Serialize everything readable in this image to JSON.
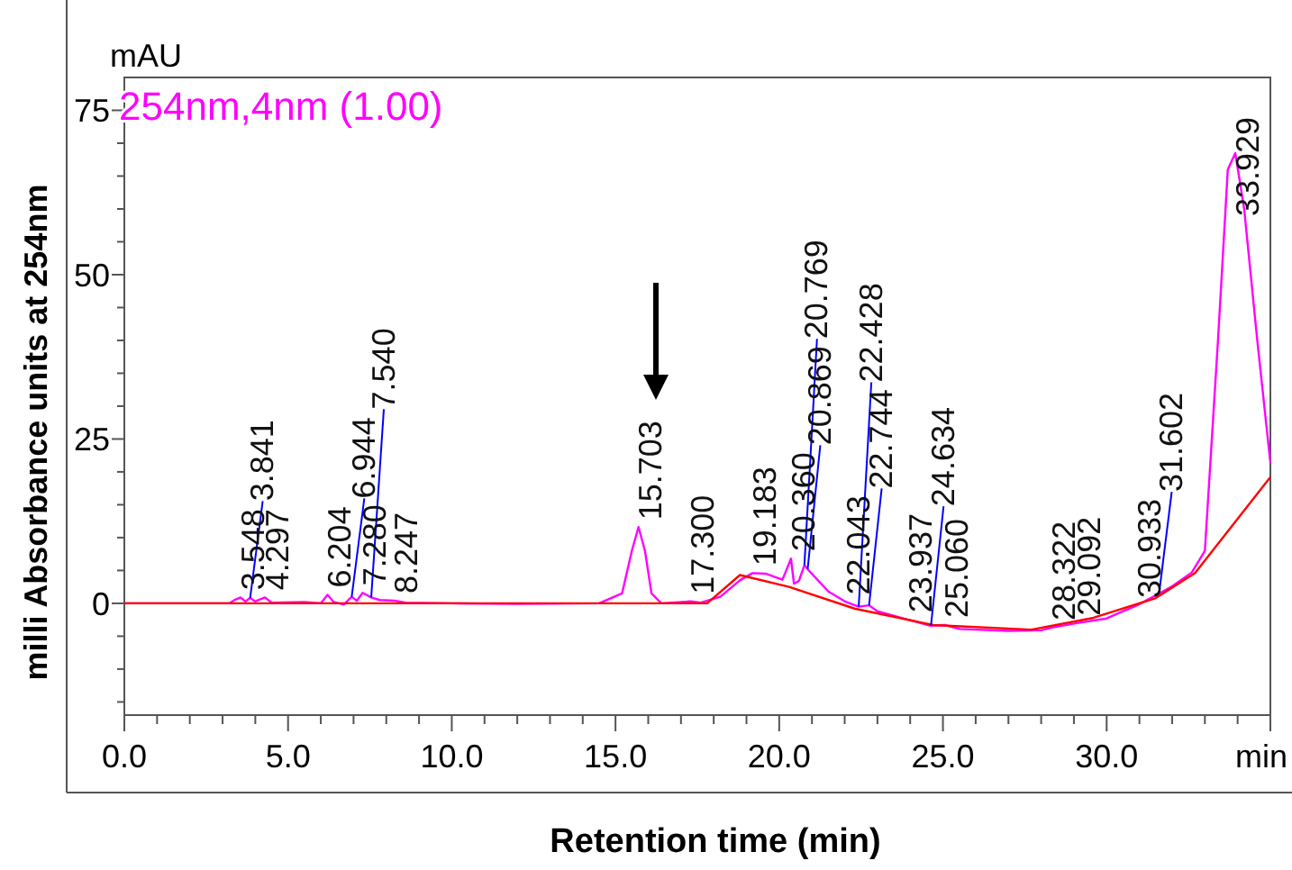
{
  "chart_data": {
    "type": "line",
    "xlabel": "Retention time (min)",
    "ylabel": "milli Absorbance units at 254nm",
    "xlim": [
      0,
      35
    ],
    "ylim": [
      -17,
      80
    ],
    "xticks": [
      {
        "value": 0,
        "label": "0.0"
      },
      {
        "value": 1,
        "label": null
      },
      {
        "value": 2,
        "label": null
      },
      {
        "value": 3,
        "label": null
      },
      {
        "value": 4,
        "label": null
      },
      {
        "value": 5,
        "label": "5.0"
      },
      {
        "value": 6,
        "label": null
      },
      {
        "value": 7,
        "label": null
      },
      {
        "value": 8,
        "label": null
      },
      {
        "value": 9,
        "label": null
      },
      {
        "value": 10,
        "label": "10.0"
      },
      {
        "value": 11,
        "label": null
      },
      {
        "value": 12,
        "label": null
      },
      {
        "value": 13,
        "label": null
      },
      {
        "value": 14,
        "label": null
      },
      {
        "value": 15,
        "label": "15.0"
      },
      {
        "value": 16,
        "label": null
      },
      {
        "value": 17,
        "label": null
      },
      {
        "value": 18,
        "label": null
      },
      {
        "value": 19,
        "label": null
      },
      {
        "value": 20,
        "label": "20.0"
      },
      {
        "value": 21,
        "label": null
      },
      {
        "value": 22,
        "label": null
      },
      {
        "value": 23,
        "label": null
      },
      {
        "value": 24,
        "label": null
      },
      {
        "value": 25,
        "label": "25.0"
      },
      {
        "value": 26,
        "label": null
      },
      {
        "value": 27,
        "label": null
      },
      {
        "value": 28,
        "label": null
      },
      {
        "value": 29,
        "label": null
      },
      {
        "value": 30,
        "label": "30.0"
      },
      {
        "value": 31,
        "label": null
      },
      {
        "value": 32,
        "label": null
      },
      {
        "value": 33,
        "label": null
      },
      {
        "value": 34,
        "label": null
      },
      {
        "value": 35,
        "label": "min"
      }
    ],
    "yticks": [
      {
        "value": -15,
        "label": null
      },
      {
        "value": -10,
        "label": null
      },
      {
        "value": -5,
        "label": null
      },
      0,
      {
        "value": 5,
        "label": null
      },
      {
        "value": 10,
        "label": null
      },
      {
        "value": 15,
        "label": null
      },
      {
        "value": 20,
        "label": null
      },
      25,
      {
        "value": 30,
        "label": null
      },
      {
        "value": 35,
        "label": null
      },
      {
        "value": 40,
        "label": null
      },
      {
        "value": 45,
        "label": null
      },
      50,
      {
        "value": 55,
        "label": null
      },
      {
        "value": 60,
        "label": null
      },
      {
        "value": 65,
        "label": null
      },
      {
        "value": 70,
        "label": null
      },
      75
    ],
    "grid": false,
    "legend": "top left",
    "marker": "none",
    "line_style": "solid",
    "series": [
      {
        "name": "254nm,4nm (1.00)",
        "color": "#ff00ff",
        "x": [
          0,
          3.2,
          3.4,
          3.548,
          3.7,
          3.841,
          4.0,
          4.297,
          4.5,
          5.5,
          6.0,
          6.204,
          6.4,
          6.7,
          6.944,
          7.1,
          7.28,
          7.54,
          7.8,
          8.247,
          8.6,
          10,
          12,
          14.5,
          15.2,
          15.5,
          15.703,
          15.9,
          16.1,
          16.4,
          17.3,
          17.6,
          18.2,
          18.8,
          19.183,
          19.6,
          20.1,
          20.36,
          20.45,
          20.6,
          20.769,
          20.869,
          21.0,
          21.5,
          22.043,
          22.428,
          22.744,
          23.0,
          23.937,
          24.634,
          25.06,
          25.5,
          27,
          28,
          28.322,
          29.092,
          30,
          30.5,
          30.933,
          31.602,
          32,
          32.6,
          33.0,
          33.4,
          33.7,
          33.929,
          34.2,
          34.6,
          35
        ],
        "values": [
          0,
          0,
          0.6,
          0.9,
          0.3,
          0.8,
          0.3,
          0.9,
          0.1,
          0.2,
          0,
          1.3,
          0.2,
          -0.2,
          1.0,
          0.4,
          1.6,
          0.9,
          0.5,
          0.4,
          0.1,
          0,
          -0.1,
          0,
          1.5,
          8,
          11.6,
          8,
          1.5,
          0,
          0.3,
          0.1,
          1,
          3.5,
          4.6,
          4.5,
          3.6,
          6.8,
          3.0,
          3.4,
          5.8,
          5.2,
          4.5,
          1.8,
          0.2,
          -0.5,
          -0.3,
          -1.2,
          -2.5,
          -3.4,
          -3.3,
          -3.9,
          -4.2,
          -4.1,
          -3.7,
          -3.0,
          -2.3,
          -1.2,
          -0.3,
          1.5,
          2.6,
          4.7,
          8,
          40,
          66,
          68.5,
          60,
          40,
          21.4
        ]
      },
      {
        "color": "#ff0000",
        "x": [
          0,
          17.8,
          18.8,
          20.3,
          22.3,
          24.7,
          27.7,
          29.6,
          31.5,
          32.7,
          35
        ],
        "values": [
          0,
          0,
          4.3,
          2.5,
          -0.8,
          -3.3,
          -4,
          -2.2,
          0.8,
          4.6,
          19.2
        ]
      }
    ],
    "annotations": [
      "mAU",
      {
        "text": "3.548",
        "x": 3.548,
        "y": 0.9
      },
      {
        "text": "4.297",
        "x": 4.297,
        "y": 0.9
      },
      {
        "text": "3.841",
        "x": 3.841,
        "y": 0.8
      },
      {
        "text": "6.204",
        "x": 6.204,
        "y": 1.3
      },
      {
        "text": "6.944",
        "x": 6.944,
        "y": 1.0
      },
      {
        "text": "7.280",
        "x": 7.28,
        "y": 1.6
      },
      {
        "text": "7.540",
        "x": 7.54,
        "y": 0.9
      },
      {
        "text": "8.247",
        "x": 8.247,
        "y": 0.4
      },
      {
        "text": "15.703",
        "x": 15.703,
        "y": 11.6
      },
      {
        "text": "17.300",
        "x": 17.3,
        "y": 0.3
      },
      {
        "text": "19.183",
        "x": 19.183,
        "y": 4.6
      },
      {
        "text": "20.360",
        "x": 20.36,
        "y": 6.8
      },
      {
        "text": "20.869",
        "x": 20.869,
        "y": 5.2
      },
      {
        "text": "20.769",
        "x": 20.769,
        "y": 5.8
      },
      {
        "text": "22.043",
        "x": 22.043,
        "y": 0.2
      },
      {
        "text": "22.744",
        "x": 22.744,
        "y": -0.3
      },
      {
        "text": "22.428",
        "x": 22.428,
        "y": -0.5
      },
      {
        "text": "23.937",
        "x": 23.937,
        "y": -2.5
      },
      {
        "text": "25.060",
        "x": 25.06,
        "y": -3.3
      },
      {
        "text": "24.634",
        "x": 24.634,
        "y": -3.4
      },
      {
        "text": "28.322",
        "x": 28.322,
        "y": -3.7
      },
      {
        "text": "29.092",
        "x": 29.092,
        "y": -3.0
      },
      {
        "text": "30.933",
        "x": 30.933,
        "y": -0.3
      },
      {
        "text": "31.602",
        "x": 31.602,
        "y": 1.5
      },
      {
        "text": "33.929",
        "x": 33.929,
        "y": 68.5
      }
    ]
  }
}
